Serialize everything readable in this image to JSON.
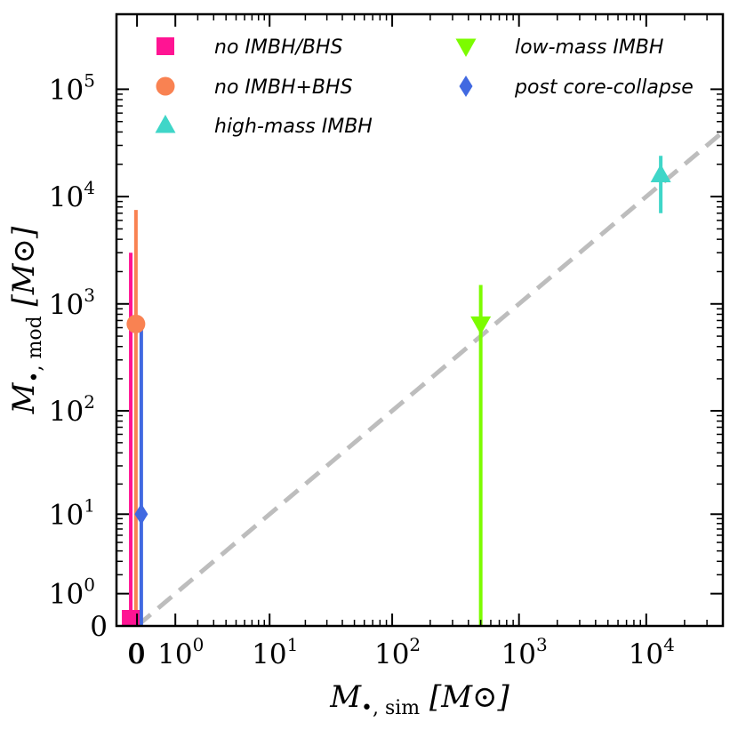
{
  "chart_data": {
    "type": "scatter",
    "title": "",
    "xlabel": "M•,sim [M⊙]",
    "ylabel": "M•,mod [M⊙]",
    "xlabel_parts": {
      "main": "M",
      "sub": "•, sim",
      "unit": "[M⊙]"
    },
    "ylabel_parts": {
      "main": "M",
      "sub": "•, mod",
      "unit": "[M⊙]"
    },
    "x_scale": "symlog",
    "y_scale": "symlog",
    "xlim": [
      -0.45,
      40000
    ],
    "ylim": [
      0,
      500000
    ],
    "x_ticks": [
      {
        "value": 0,
        "base": "0",
        "exp": ""
      },
      {
        "value": 1,
        "base": "10",
        "exp": "0"
      },
      {
        "value": 10,
        "base": "10",
        "exp": "1"
      },
      {
        "value": 100,
        "base": "10",
        "exp": "2"
      },
      {
        "value": 1000,
        "base": "10",
        "exp": "3"
      },
      {
        "value": 10000,
        "base": "10",
        "exp": "4"
      }
    ],
    "x_extra_tick_label": "0",
    "y_ticks": [
      {
        "value": 0,
        "base": "0",
        "exp": ""
      },
      {
        "value": 1,
        "base": "10",
        "exp": "0"
      },
      {
        "value": 10,
        "base": "10",
        "exp": "1"
      },
      {
        "value": 100,
        "base": "10",
        "exp": "2"
      },
      {
        "value": 1000,
        "base": "10",
        "exp": "3"
      },
      {
        "value": 10000,
        "base": "10",
        "exp": "4"
      },
      {
        "value": 100000,
        "base": "10",
        "exp": "5"
      }
    ],
    "one_to_one_line": {
      "color": "#bdbdbd",
      "style": "dashed"
    },
    "series": [
      {
        "name": "no IMBH/BHS",
        "marker": "square",
        "color": "#ff1493",
        "x": -0.12,
        "y": 0,
        "y_err_low": 0,
        "y_err_high": 3000
      },
      {
        "name": "no IMBH+BHS",
        "marker": "circle",
        "color": "#f98252",
        "x": -0.02,
        "y": 650,
        "y_err_low": 0,
        "y_err_high": 7500
      },
      {
        "name": "high-mass IMBH",
        "marker": "triangle-up",
        "color": "#3fd6c8",
        "x": 13000,
        "y": 16000,
        "y_err_low": 7000,
        "y_err_high": 24000
      },
      {
        "name": "low-mass IMBH",
        "marker": "triangle-down",
        "color": "#7cfc00",
        "x": 500,
        "y": 650,
        "y_err_low": 0,
        "y_err_high": 1500
      },
      {
        "name": "post core-collapse",
        "marker": "diamond",
        "color": "#4169e1",
        "x": 0.08,
        "y": 10,
        "y_err_low": 0,
        "y_err_high": 600
      }
    ],
    "legend": {
      "location": "top",
      "columns": [
        [
          "no IMBH/BHS",
          "no IMBH+BHS",
          "high-mass IMBH"
        ],
        [
          "low-mass IMBH",
          "post core-collapse"
        ]
      ]
    }
  }
}
